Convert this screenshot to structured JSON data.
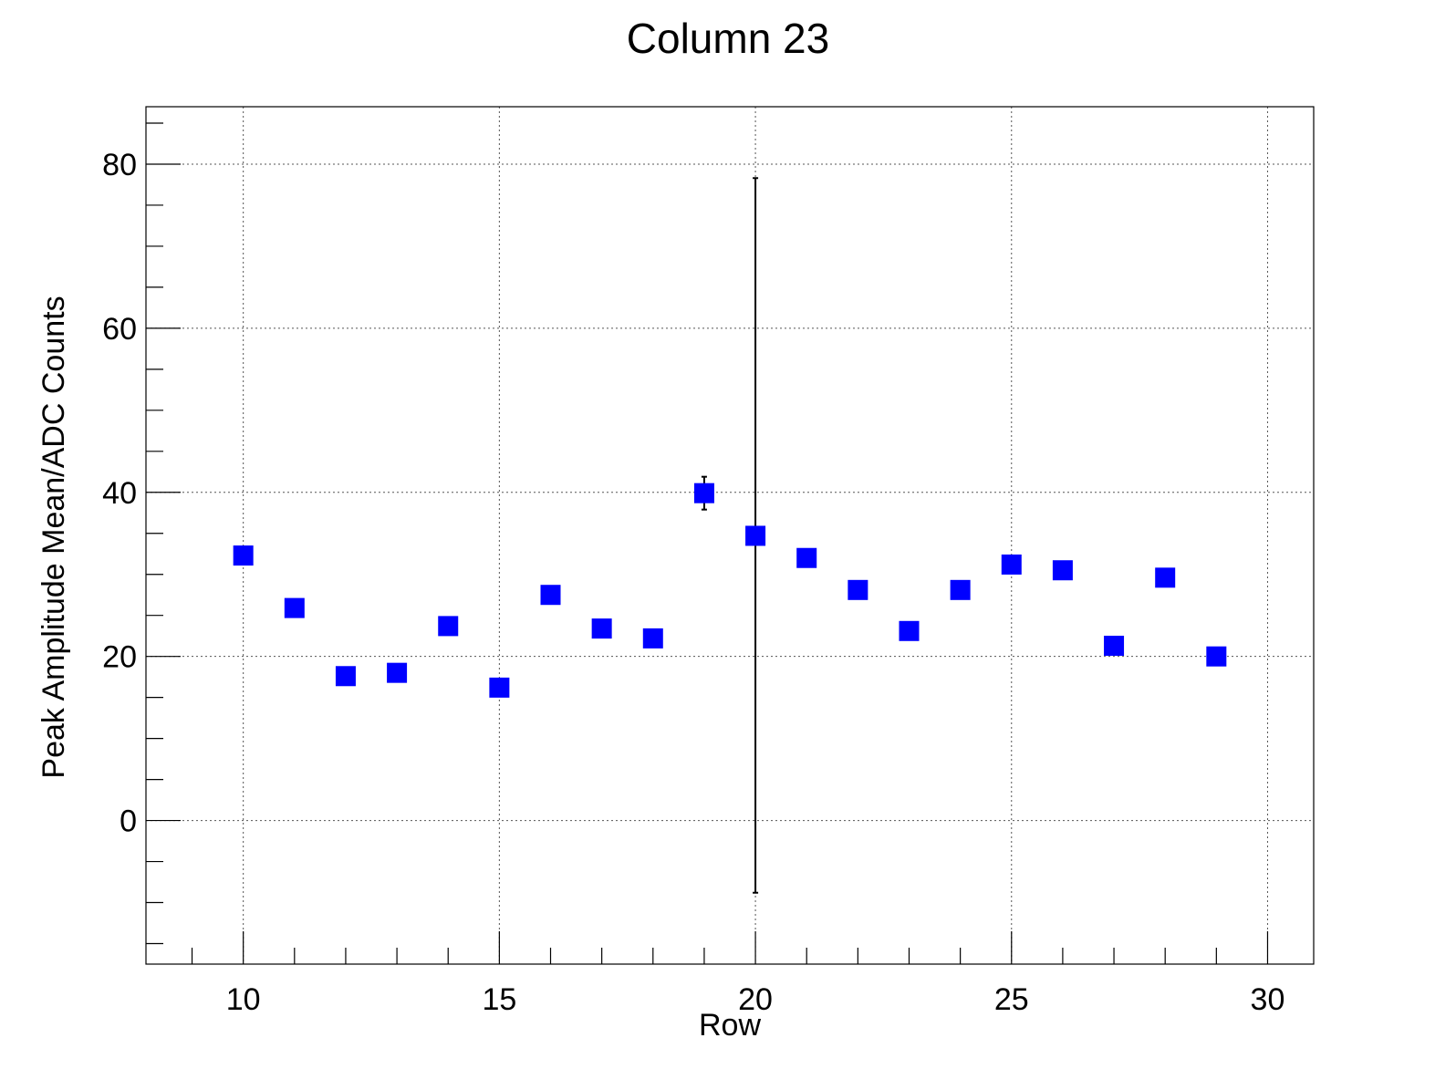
{
  "chart_data": {
    "type": "scatter",
    "title": "Column 23",
    "xlabel": "Row",
    "ylabel": "Peak Amplitude Mean/ADC Counts",
    "xlim": [
      8.1,
      30.9
    ],
    "ylim": [
      -17.5,
      87
    ],
    "xticks": [
      10,
      15,
      20,
      25,
      30
    ],
    "yticks": [
      0,
      20,
      40,
      60,
      80
    ],
    "grid": true,
    "marker": "square",
    "marker_color": "#0000ff",
    "points": [
      {
        "x": 10,
        "y": 32.3
      },
      {
        "x": 11,
        "y": 25.9
      },
      {
        "x": 12,
        "y": 17.6
      },
      {
        "x": 13,
        "y": 18.0
      },
      {
        "x": 14,
        "y": 23.7
      },
      {
        "x": 15,
        "y": 16.2
      },
      {
        "x": 16,
        "y": 27.5
      },
      {
        "x": 17,
        "y": 23.4
      },
      {
        "x": 18,
        "y": 22.2
      },
      {
        "x": 19,
        "y": 39.9,
        "yerr": 2.0
      },
      {
        "x": 20,
        "y": 34.7,
        "yerr_low": 43.5,
        "yerr_high": 43.6
      },
      {
        "x": 21,
        "y": 32.0
      },
      {
        "x": 22,
        "y": 28.1
      },
      {
        "x": 23,
        "y": 23.1
      },
      {
        "x": 24,
        "y": 28.1
      },
      {
        "x": 25,
        "y": 31.2
      },
      {
        "x": 26,
        "y": 30.5
      },
      {
        "x": 27,
        "y": 21.3
      },
      {
        "x": 28,
        "y": 29.6
      },
      {
        "x": 29,
        "y": 20.0
      }
    ]
  }
}
